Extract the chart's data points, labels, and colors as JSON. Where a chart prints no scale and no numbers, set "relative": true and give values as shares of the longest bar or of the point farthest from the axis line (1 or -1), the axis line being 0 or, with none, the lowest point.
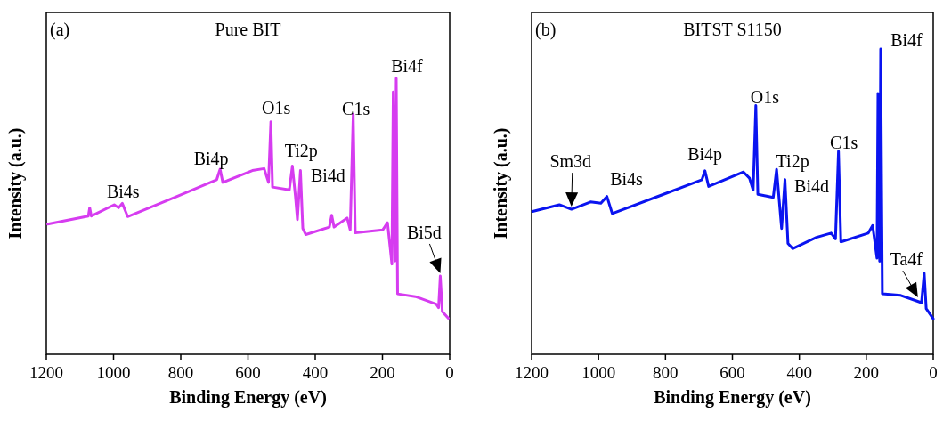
{
  "chart_data": [
    {
      "type": "line",
      "title": "Pure BIT",
      "xlabel": "Binding Energy (eV)",
      "ylabel": "Intensity (a.u.)",
      "relative": true,
      "tick_labels": "x",
      "xlim": [
        1200,
        0
      ],
      "xticks": [
        1200,
        1000,
        800,
        600,
        400,
        200,
        0
      ],
      "x": [
        1196,
        1075,
        1071,
        1066,
        998,
        985,
        974,
        958,
        808,
        693,
        683,
        675,
        587,
        552,
        539,
        532,
        527,
        477,
        468,
        459,
        453,
        444,
        437,
        428,
        358,
        351,
        344,
        305,
        296,
        287,
        281,
        199,
        185,
        172,
        168,
        163,
        159,
        155,
        102,
        40,
        33,
        28,
        22,
        4
      ],
      "series": [
        {
          "color": "#d63cf0",
          "values": [
            0.472,
            0.501,
            0.531,
            0.501,
            0.542,
            0.531,
            0.547,
            0.499,
            0.574,
            0.633,
            0.671,
            0.623,
            0.666,
            0.673,
            0.623,
            0.843,
            0.606,
            0.596,
            0.682,
            0.574,
            0.488,
            0.666,
            0.456,
            0.434,
            0.461,
            0.504,
            0.461,
            0.494,
            0.451,
            0.87,
            0.44,
            0.451,
            0.477,
            0.327,
            0.951,
            0.338,
            1,
            0.219,
            0.209,
            0.182,
            0.169,
            0.284,
            0.155,
            0.131
          ]
        }
      ],
      "annotations": [
        "(a)",
        {
          "text": "Bi4s",
          "x": 974,
          "y": 0.547
        },
        {
          "text": "Bi4p",
          "x": 683,
          "y": 0.671
        },
        {
          "text": "O1s",
          "x": 532,
          "y": 0.843
        },
        {
          "text": "Ti2p",
          "x": 468,
          "y": 0.682
        },
        {
          "text": "Bi4d",
          "x": 444,
          "y": 0.666
        },
        {
          "text": "C1s",
          "x": 287,
          "y": 0.87
        },
        {
          "text": "Bi4f",
          "x": 159,
          "y": 1
        },
        {
          "text": "Bi5d",
          "x": 28,
          "y": 0.284
        }
      ]
    },
    {
      "type": "line",
      "title": "BITST S1150",
      "xlabel": "Binding Energy (eV)",
      "ylabel": "Intensity (a.u.)",
      "relative": true,
      "tick_labels": "x",
      "xlim": [
        1200,
        0
      ],
      "xticks": [
        1200,
        1000,
        800,
        600,
        400,
        200,
        0
      ],
      "x": [
        1197,
        1117,
        1081,
        1024,
        993,
        975,
        959,
        806,
        691,
        682,
        671,
        567,
        549,
        538,
        530,
        524,
        478,
        468,
        453,
        443,
        434,
        420,
        349,
        305,
        292,
        283,
        276,
        194,
        181,
        168,
        165,
        160,
        157,
        152,
        97,
        35,
        27,
        21,
        0
      ],
      "series": [
        {
          "color": "#0a14f0",
          "values": [
            0.468,
            0.49,
            0.475,
            0.499,
            0.495,
            0.517,
            0.461,
            0.524,
            0.572,
            0.601,
            0.55,
            0.597,
            0.577,
            0.538,
            0.815,
            0.524,
            0.514,
            0.606,
            0.412,
            0.572,
            0.363,
            0.346,
            0.383,
            0.397,
            0.378,
            0.665,
            0.368,
            0.397,
            0.422,
            0.315,
            0.854,
            0.305,
            1,
            0.198,
            0.193,
            0.169,
            0.266,
            0.15,
            0.116
          ]
        }
      ],
      "annotations": [
        "(b)",
        {
          "text": "Sm3d",
          "x": 1081,
          "y": 0.475
        },
        {
          "text": "Bi4s",
          "x": 975,
          "y": 0.517
        },
        {
          "text": "Bi4p",
          "x": 682,
          "y": 0.601
        },
        {
          "text": "O1s",
          "x": 530,
          "y": 0.815
        },
        {
          "text": "Ti2p",
          "x": 468,
          "y": 0.606
        },
        {
          "text": "Bi4d",
          "x": 443,
          "y": 0.572
        },
        {
          "text": "C1s",
          "x": 283,
          "y": 0.665
        },
        {
          "text": "Bi4f",
          "x": 157,
          "y": 1
        },
        {
          "text": "Ta4f",
          "x": 35,
          "y": 0.169
        }
      ]
    }
  ]
}
